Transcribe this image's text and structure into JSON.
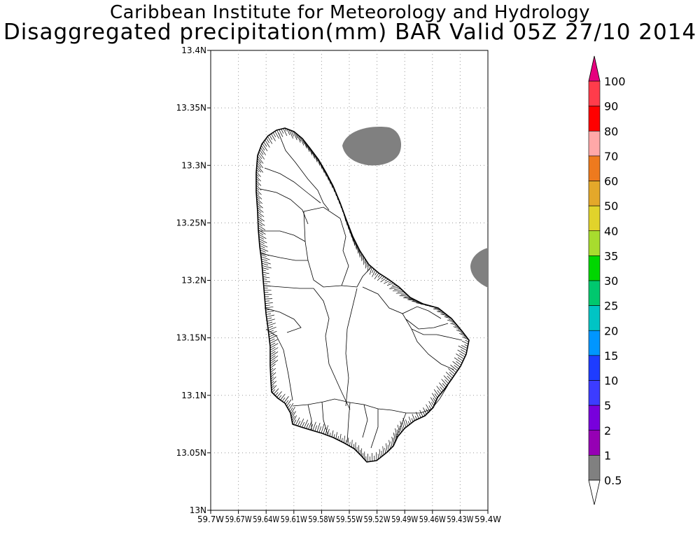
{
  "title": {
    "line1": "Caribbean Institute for Meteorology and Hydrology",
    "line2": "Disaggregated precipitation(mm) BAR Valid 05Z 27/10 2014"
  },
  "map": {
    "lon_ticks": [
      "59.7W",
      "59.67W",
      "59.64W",
      "59.61W",
      "59.58W",
      "59.55W",
      "59.52W",
      "59.49W",
      "59.46W",
      "59.43W",
      "59.4W"
    ],
    "lat_ticks": [
      "13.4N",
      "13.35N",
      "13.3N",
      "13.25N",
      "13.2N",
      "13.15N",
      "13.1N",
      "13.05N",
      "13N"
    ],
    "grid": true,
    "rain_area_color": "#808080"
  },
  "colorbar": {
    "labels": [
      "100",
      "90",
      "80",
      "70",
      "60",
      "50",
      "40",
      "35",
      "30",
      "25",
      "20",
      "15",
      "10",
      "5",
      "2",
      "1",
      "0.5"
    ],
    "colors": [
      "#ff3c4b",
      "#ff0000",
      "#ffa8a8",
      "#ee7a1e",
      "#e4a82a",
      "#e1d32b",
      "#a8dc2e",
      "#00d700",
      "#00c86e",
      "#00c4c4",
      "#0096ff",
      "#1e3cff",
      "#3c3cff",
      "#7800dc",
      "#9600b4",
      "#808080"
    ],
    "top_arrow_color": "#e6007e",
    "bottom_arrow_color": "#ffffff"
  }
}
